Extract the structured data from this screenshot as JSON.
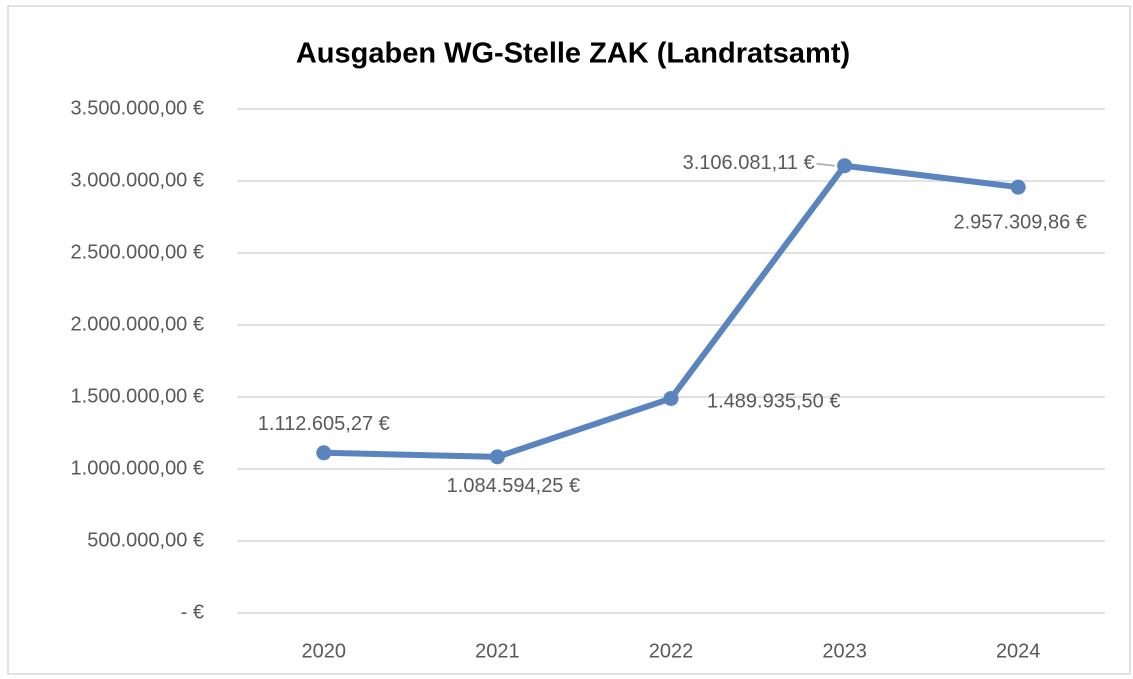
{
  "chart_data": {
    "type": "line",
    "title": "Ausgaben WG-Stelle ZAK (Landratsamt)",
    "categories": [
      "2020",
      "2021",
      "2022",
      "2023",
      "2024"
    ],
    "series": [
      {
        "name": "Ausgaben",
        "color": "#5a84be",
        "values": [
          1112605.27,
          1084594.25,
          1489935.5,
          3106081.11,
          2957309.86
        ],
        "value_labels": [
          "1.112.605,27 €",
          "1.084.594,25 €",
          "1.489.935,50 €",
          "3.106.081,11 €",
          "2.957.309,86 €"
        ]
      }
    ],
    "ylim": [
      0,
      3500000
    ],
    "yticks": [
      {
        "value": 0,
        "label": "-   €"
      },
      {
        "value": 500000,
        "label": "500.000,00 €"
      },
      {
        "value": 1000000,
        "label": "1.000.000,00 €"
      },
      {
        "value": 1500000,
        "label": "1.500.000,00 €"
      },
      {
        "value": 2000000,
        "label": "2.000.000,00 €"
      },
      {
        "value": 2500000,
        "label": "2.500.000,00 €"
      },
      {
        "value": 3000000,
        "label": "3.000.000,00 €"
      },
      {
        "value": 3500000,
        "label": "3.500.000,00 €"
      }
    ],
    "grid": true
  }
}
